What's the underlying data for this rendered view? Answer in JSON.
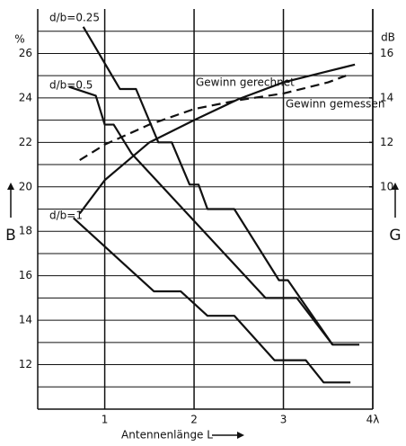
{
  "chart_data": {
    "type": "line",
    "x_label": "Antennenlänge L",
    "y_label": "B",
    "y2_label": "G",
    "y_unit": "%",
    "y2_unit": "dB",
    "xlim": [
      0.25,
      4
    ],
    "xticks": [
      1,
      2,
      3,
      {
        "value": 4,
        "label": "4λ"
      }
    ],
    "ylim": [
      10,
      28
    ],
    "yticks": [
      12,
      14,
      16,
      18,
      20,
      22,
      24,
      26
    ],
    "minor_yticks": [
      11,
      13,
      15,
      17,
      19,
      21,
      23,
      25,
      27
    ],
    "y2lim": [
      0,
      18
    ],
    "y2ticks": [
      10,
      12,
      14,
      16
    ],
    "grid": true,
    "series": [
      {
        "name": "d/b=0.25",
        "color": "#111111",
        "dashed": false,
        "x": [
          0.76,
          1.17,
          1.35,
          1.6,
          1.75,
          1.95,
          2.05,
          2.15,
          2.45,
          2.95,
          3.05,
          3.55,
          3.85
        ],
        "values": [
          27.2,
          24.4,
          24.4,
          22.0,
          22.0,
          20.1,
          20.1,
          19.0,
          19.0,
          15.8,
          15.8,
          12.9,
          12.9
        ]
      },
      {
        "name": "d/b=0.5",
        "color": "#111111",
        "dashed": false,
        "x": [
          0.6,
          0.9,
          1.0,
          1.1,
          1.3,
          2.8,
          3.15,
          3.55
        ],
        "values": [
          24.5,
          24.1,
          22.8,
          22.8,
          21.5,
          15.0,
          15.0,
          12.9
        ]
      },
      {
        "name": "d/b=1",
        "color": "#111111",
        "dashed": false,
        "x": [
          0.65,
          1.55,
          1.85,
          2.15,
          2.45,
          2.9,
          3.25,
          3.45,
          3.75
        ],
        "values": [
          18.6,
          15.3,
          15.3,
          14.2,
          14.2,
          12.2,
          12.2,
          11.2,
          11.2
        ]
      },
      {
        "name": "Gewinn gerechnet",
        "color": "#111111",
        "dashed": false,
        "axis": "y2",
        "x": [
          0.72,
          1.0,
          1.5,
          2.0,
          2.5,
          3.0,
          3.5,
          3.8
        ],
        "values": [
          8.8,
          10.3,
          12.0,
          13.0,
          13.95,
          14.7,
          15.2,
          15.5
        ]
      },
      {
        "name": "Gewinn gemessen",
        "color": "#111111",
        "dashed": true,
        "axis": "y2",
        "x": [
          0.72,
          1.0,
          1.5,
          2.0,
          2.5,
          3.0,
          3.5,
          3.7
        ],
        "values": [
          11.2,
          11.9,
          12.8,
          13.5,
          13.9,
          14.2,
          14.7,
          15.0
        ]
      }
    ]
  }
}
